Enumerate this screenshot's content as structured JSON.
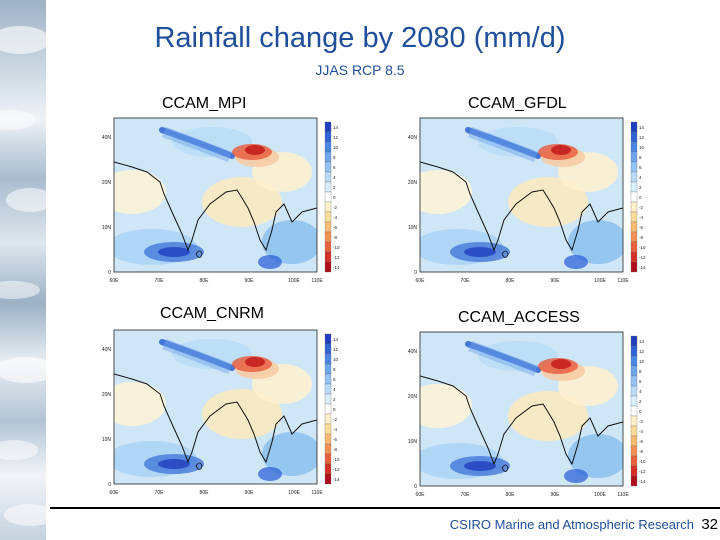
{
  "title": "Rainfall change by 2080 (mm/d)",
  "subtitle": "JJAS RCP 8.5",
  "panels": [
    {
      "label": "CCAM_MPI"
    },
    {
      "label": "CCAM_GFDL"
    },
    {
      "label": "CCAM_CNRM"
    },
    {
      "label": "CCAM_ACCESS"
    }
  ],
  "map_axes": {
    "lat_ticks": [
      "40N",
      "20N",
      "10N",
      "0"
    ],
    "lon_ticks": [
      "60E",
      "70E",
      "80E",
      "90E",
      "100E",
      "110E"
    ]
  },
  "colorbar": {
    "ticks": [
      "14",
      "12",
      "10",
      "8",
      "6",
      "4",
      "2",
      "0",
      "-2",
      "-4",
      "-6",
      "-8",
      "-10",
      "-12",
      "-14"
    ],
    "colors": [
      "#1f3fbf",
      "#2f63d6",
      "#4a86e4",
      "#6ea6ee",
      "#93c2f5",
      "#b8dbf9",
      "#d9eefc",
      "#ffffff",
      "#fff0c8",
      "#fddc9a",
      "#fbbb73",
      "#f59055",
      "#e9603d",
      "#d63027",
      "#b0101c"
    ]
  },
  "footer": {
    "organization": "CSIRO Marine and Atmospheric Research",
    "page_number": "32"
  }
}
